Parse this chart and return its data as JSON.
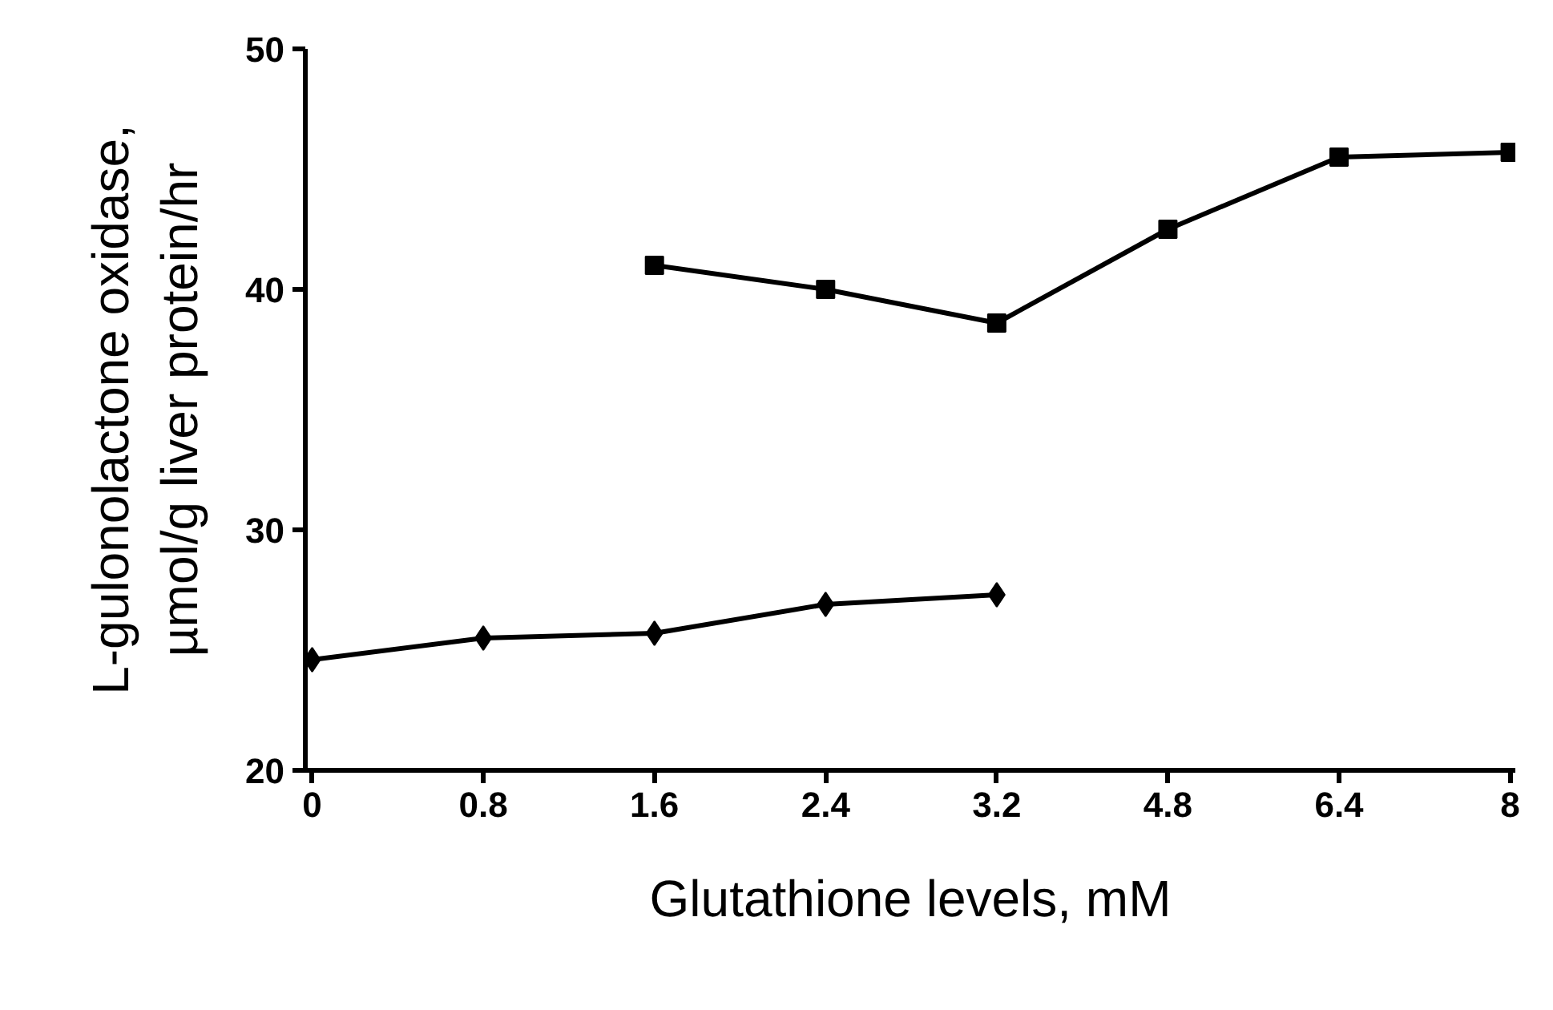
{
  "chart_data": {
    "type": "line",
    "xlabel": "Glutathione levels, mM",
    "ylabel": "L-gulonolactone oxidase,\nµmol/g liver protein/hr",
    "categories": [
      "0",
      "0.8",
      "1.6",
      "2.4",
      "3.2",
      "4.8",
      "6.4",
      "8"
    ],
    "series": [
      {
        "color": "#000000",
        "marker": "diamond",
        "values": [
          24.6,
          25.5,
          25.7,
          26.9,
          27.3,
          null,
          null,
          null
        ]
      },
      {
        "color": "#000000",
        "marker": "square",
        "values": [
          null,
          null,
          41.0,
          40.0,
          38.6,
          42.5,
          45.5,
          45.7
        ]
      }
    ],
    "ylim": [
      20,
      50
    ],
    "yticks": [
      20,
      30,
      40,
      50
    ],
    "grid": false,
    "line_style": "solid"
  }
}
